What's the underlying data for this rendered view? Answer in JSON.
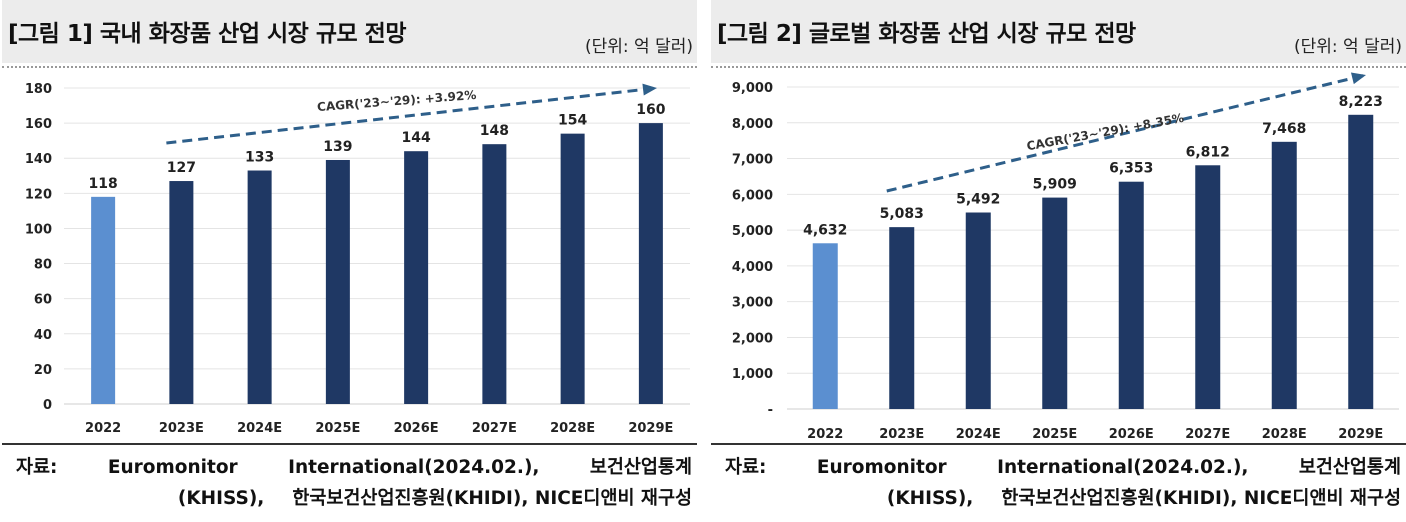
{
  "chart_data": [
    {
      "type": "bar",
      "title": "[그림 1] 국내 화장품 산업 시장 규모 전망",
      "unit": "(단위: 억 달러)",
      "categories": [
        "2022",
        "2023E",
        "2024E",
        "2025E",
        "2026E",
        "2027E",
        "2028E",
        "2029E"
      ],
      "values": [
        118,
        127,
        133,
        139,
        144,
        148,
        154,
        160
      ],
      "labels": [
        "118",
        "127",
        "133",
        "139",
        "144",
        "148",
        "154",
        "160"
      ],
      "yticks": [
        "0",
        "20",
        "40",
        "60",
        "80",
        "100",
        "120",
        "140",
        "160",
        "180"
      ],
      "ylim": [
        0,
        180
      ],
      "ytick_step": 20,
      "colors": {
        "actual": "#5b8fd0",
        "forecast": "#1f3864",
        "trend": "#2e5f8a"
      },
      "annotation": "CAGR('23~'29): +3.92%",
      "xlabel": "",
      "ylabel": ""
    },
    {
      "type": "bar",
      "title": "[그림 2] 글로벌 화장품 산업 시장 규모 전망",
      "unit": "(단위: 억 달러)",
      "categories": [
        "2022",
        "2023E",
        "2024E",
        "2025E",
        "2026E",
        "2027E",
        "2028E",
        "2029E"
      ],
      "values": [
        4632,
        5083,
        5492,
        5909,
        6353,
        6812,
        7468,
        8223
      ],
      "labels": [
        "4,632",
        "5,083",
        "5,492",
        "5,909",
        "6,353",
        "6,812",
        "7,468",
        "8,223"
      ],
      "yticks": [
        "-",
        "1,000",
        "2,000",
        "3,000",
        "4,000",
        "5,000",
        "6,000",
        "7,000",
        "8,000",
        "9,000"
      ],
      "ylim": [
        0,
        9000
      ],
      "ytick_step": 1000,
      "colors": {
        "actual": "#5b8fd0",
        "forecast": "#1f3864",
        "trend": "#2e5f8a"
      },
      "annotation": "CAGR('23~'29): +8.35%",
      "xlabel": "",
      "ylabel": ""
    }
  ],
  "source": {
    "label": "자료:",
    "part1": "Euromonitor",
    "part2": "International(2024.02.),",
    "part3": "보건산업통계",
    "part4": "(KHISS),",
    "part5": "한국보건산업진흥원(KHIDI), NICE디앤비 재구성"
  }
}
